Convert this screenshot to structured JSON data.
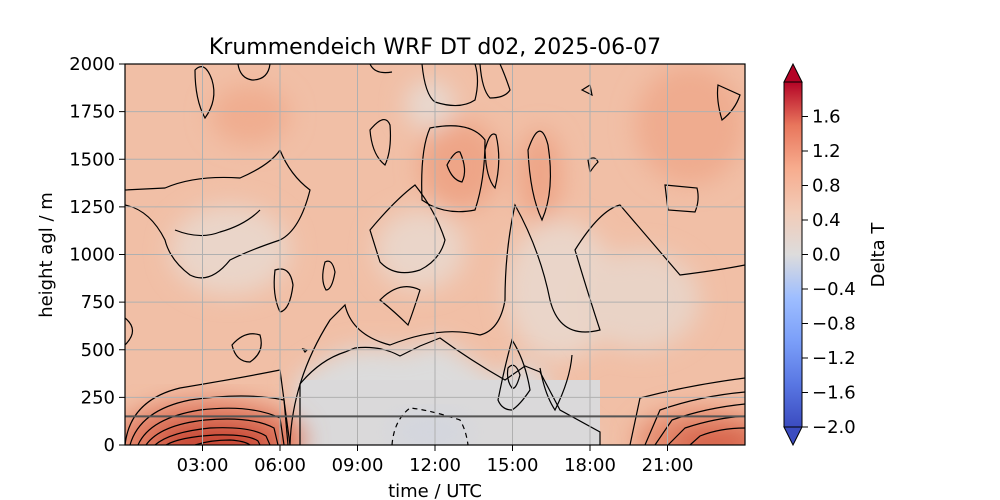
{
  "chart_data": {
    "type": "heatmap",
    "title": "Krummendeich WRF DT d02, 2025-06-07",
    "xlabel": "time / UTC",
    "ylabel": "height agl / m",
    "x_ticks": [
      "03:00",
      "06:00",
      "09:00",
      "12:00",
      "15:00",
      "18:00",
      "21:00"
    ],
    "x_tick_hours": [
      3,
      6,
      9,
      12,
      15,
      18,
      21
    ],
    "xlim_hours": [
      0,
      24
    ],
    "y_ticks": [
      0,
      250,
      500,
      750,
      1000,
      1250,
      1500,
      1750,
      2000
    ],
    "ylim": [
      0,
      2000
    ],
    "grid": true,
    "reference_line_height": 150,
    "colorbar": {
      "label": "Delta T",
      "ticks": [
        -2.0,
        -1.6,
        -1.2,
        -0.8,
        -0.4,
        0.0,
        0.4,
        0.8,
        1.2,
        1.6
      ],
      "tick_labels": [
        "−2.0",
        "−1.6",
        "−1.2",
        "−0.8",
        "−0.4",
        "0.0",
        "0.4",
        "0.8",
        "1.2",
        "1.6"
      ],
      "range": [
        -2.0,
        2.0
      ],
      "extend": "both",
      "colormap": "coolwarm",
      "colors": {
        "min": "#3b4cc0",
        "mid": "#dddcdc",
        "max": "#b40426"
      }
    },
    "field_description": "Temperature anomaly Delta T over time (hours UTC) and height; strong positive near surface early morning and late evening, near-zero neutral zone below ~500 m from ~07:00 to ~18:00, slight negative pocket around 11:00-13:00 near surface, weak positive above."
  }
}
